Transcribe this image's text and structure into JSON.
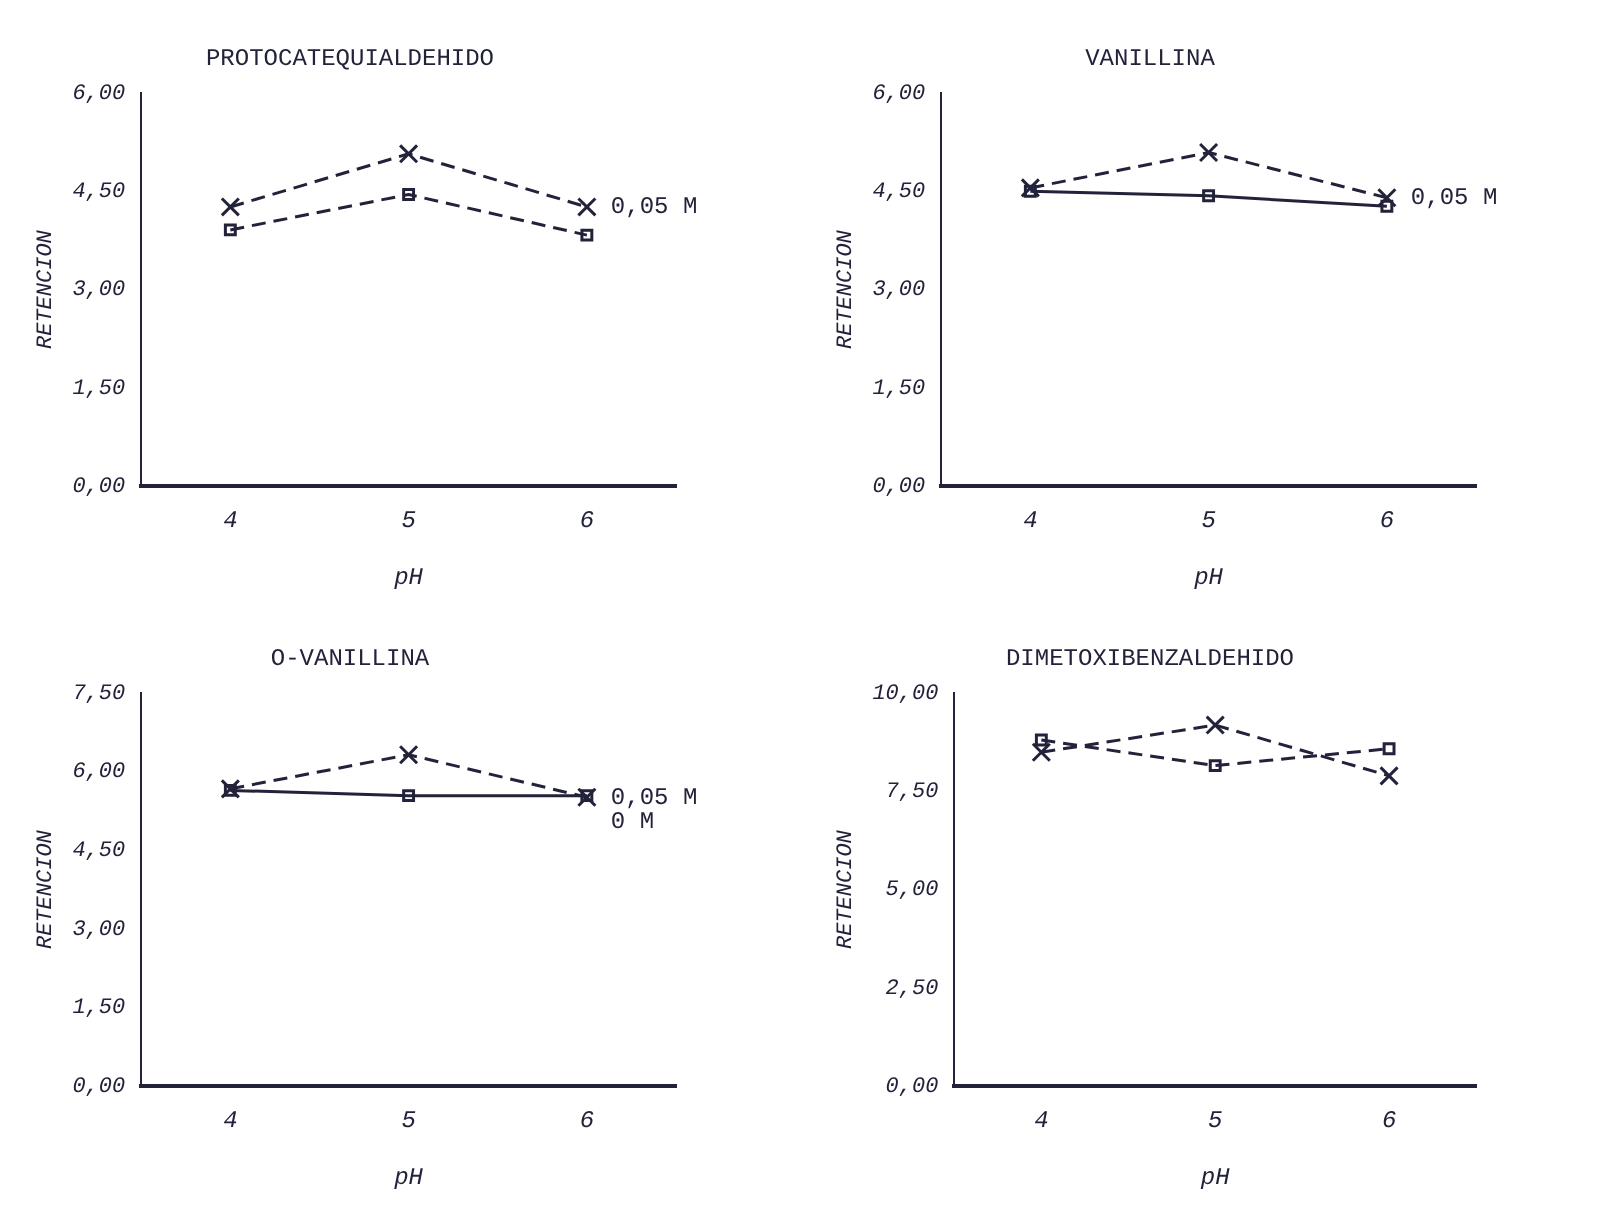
{
  "chart_data": [
    {
      "type": "line",
      "title": "PROTOCATEQUIALDEHIDO",
      "xlabel": "pH",
      "ylabel": "RETENCION",
      "categories": [
        "4",
        "5",
        "6"
      ],
      "ylim": [
        0,
        6
      ],
      "yticks": [
        {
          "value": 0,
          "label": "0,00"
        },
        {
          "value": 1.5,
          "label": "1,50"
        },
        {
          "value": 3,
          "label": "3,00"
        },
        {
          "value": 4.5,
          "label": "4,50"
        },
        {
          "value": 6,
          "label": "6,00"
        }
      ],
      "grid": false,
      "legend": false,
      "series": [
        {
          "name": "0,05 M",
          "color": "#22223a",
          "marker": "cross",
          "line_style": "dashed",
          "values": [
            4.26,
            5.07,
            4.26
          ]
        },
        {
          "color": "#22223a",
          "marker": "square",
          "line_style": "dashed",
          "values": [
            3.91,
            4.45,
            3.83
          ]
        }
      ]
    },
    {
      "type": "line",
      "title": "VANILLINA",
      "xlabel": "pH",
      "ylabel": "RETENCION",
      "categories": [
        "4",
        "5",
        "6"
      ],
      "ylim": [
        0,
        6
      ],
      "yticks": [
        {
          "value": 0,
          "label": "0,00"
        },
        {
          "value": 1.5,
          "label": "1,50"
        },
        {
          "value": 3,
          "label": "3,00"
        },
        {
          "value": 4.5,
          "label": "4,50"
        },
        {
          "value": 6,
          "label": "6,00"
        }
      ],
      "grid": false,
      "legend": false,
      "series": [
        {
          "name": "0,05 M",
          "color": "#22223a",
          "marker": "cross",
          "line_style": "dashed",
          "values": [
            4.55,
            5.09,
            4.4
          ]
        },
        {
          "color": "#22223a",
          "marker": "square",
          "line_style": "solid",
          "values": [
            4.5,
            4.43,
            4.27
          ]
        }
      ]
    },
    {
      "type": "line",
      "title": "O-VANILLINA",
      "xlabel": "pH",
      "ylabel": "RETENCION",
      "categories": [
        "4",
        "5",
        "6"
      ],
      "ylim": [
        0,
        7.5
      ],
      "yticks": [
        {
          "value": 0,
          "label": "0,00"
        },
        {
          "value": 1.5,
          "label": "1,50"
        },
        {
          "value": 3,
          "label": "3,00"
        },
        {
          "value": 4.5,
          "label": "4,50"
        },
        {
          "value": 6,
          "label": "6,00"
        },
        {
          "value": 7.5,
          "label": "7,50"
        }
      ],
      "grid": false,
      "legend": false,
      "series": [
        {
          "name": "0,05 M",
          "color": "#22223a",
          "marker": "cross",
          "line_style": "dashed",
          "values": [
            5.67,
            6.32,
            5.51
          ]
        },
        {
          "name": "0 M",
          "color": "#22223a",
          "marker": "square",
          "line_style": "solid",
          "values": [
            5.64,
            5.54,
            5.54
          ]
        }
      ]
    },
    {
      "type": "line",
      "title": "DIMETOXIBENZALDEHIDO",
      "xlabel": "pH",
      "ylabel": "RETENCION",
      "categories": [
        "4",
        "5",
        "6"
      ],
      "ylim": [
        0,
        10
      ],
      "yticks": [
        {
          "value": 0,
          "label": "0,00"
        },
        {
          "value": 2.5,
          "label": "2,50"
        },
        {
          "value": 5,
          "label": "5,00"
        },
        {
          "value": 7.5,
          "label": "7,50"
        },
        {
          "value": 10,
          "label": "10,00"
        }
      ],
      "grid": false,
      "legend": false,
      "series": [
        {
          "color": "#22223a",
          "marker": "cross",
          "line_style": "dashed",
          "values": [
            8.49,
            9.18,
            7.89
          ]
        },
        {
          "color": "#22223a",
          "marker": "square",
          "line_style": "dashed",
          "values": [
            8.8,
            8.15,
            8.58
          ]
        }
      ]
    }
  ]
}
